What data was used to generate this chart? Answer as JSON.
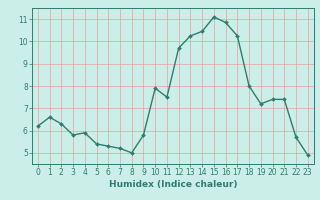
{
  "x": [
    0,
    1,
    2,
    3,
    4,
    5,
    6,
    7,
    8,
    9,
    10,
    11,
    12,
    13,
    14,
    15,
    16,
    17,
    18,
    19,
    20,
    21,
    22,
    23
  ],
  "y": [
    6.2,
    6.6,
    6.3,
    5.8,
    5.9,
    5.4,
    5.3,
    5.2,
    5.0,
    5.8,
    7.9,
    7.5,
    9.7,
    10.25,
    10.45,
    11.1,
    10.85,
    10.25,
    8.0,
    7.2,
    7.4,
    7.4,
    5.7,
    4.9
  ],
  "line_color": "#2e7d6e",
  "marker": "D",
  "marker_size": 2.0,
  "bg_color": "#cceee8",
  "grid_color": "#e8a0a0",
  "axis_color": "#2e7d6e",
  "xlabel": "Humidex (Indice chaleur)",
  "ylim": [
    4.5,
    11.5
  ],
  "xlim": [
    -0.5,
    23.5
  ],
  "yticks": [
    5,
    6,
    7,
    8,
    9,
    10,
    11
  ],
  "xticks": [
    0,
    1,
    2,
    3,
    4,
    5,
    6,
    7,
    8,
    9,
    10,
    11,
    12,
    13,
    14,
    15,
    16,
    17,
    18,
    19,
    20,
    21,
    22,
    23
  ],
  "xlabel_fontsize": 6.5,
  "tick_fontsize": 5.5,
  "linewidth": 1.0
}
